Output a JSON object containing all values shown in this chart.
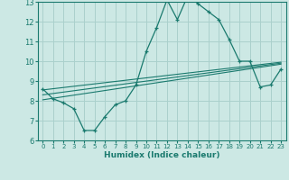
{
  "xlabel": "Humidex (Indice chaleur)",
  "ylabel": "",
  "background_color": "#cce8e4",
  "grid_color": "#aad0cc",
  "line_color": "#1a7a6e",
  "xlim": [
    -0.5,
    23.5
  ],
  "ylim": [
    6,
    13
  ],
  "xticks": [
    0,
    1,
    2,
    3,
    4,
    5,
    6,
    7,
    8,
    9,
    10,
    11,
    12,
    13,
    14,
    15,
    16,
    17,
    18,
    19,
    20,
    21,
    22,
    23
  ],
  "yticks": [
    6,
    7,
    8,
    9,
    10,
    11,
    12,
    13
  ],
  "line1_x": [
    0,
    1,
    2,
    3,
    4,
    5,
    6,
    7,
    8,
    9,
    10,
    11,
    12,
    13,
    14,
    15,
    16,
    17,
    18,
    19,
    20,
    21,
    22,
    23
  ],
  "line1_y": [
    8.6,
    8.1,
    7.9,
    7.6,
    6.5,
    6.5,
    7.2,
    7.8,
    8.0,
    8.8,
    10.5,
    11.7,
    13.1,
    12.1,
    13.3,
    12.9,
    12.5,
    12.1,
    11.1,
    10.0,
    10.0,
    8.7,
    8.8,
    9.6
  ],
  "line2_x": [
    0,
    23
  ],
  "line2_y": [
    8.05,
    9.85
  ],
  "line3_x": [
    0,
    23
  ],
  "line3_y": [
    8.55,
    9.95
  ],
  "line4_x": [
    0,
    23
  ],
  "line4_y": [
    8.3,
    9.9
  ]
}
